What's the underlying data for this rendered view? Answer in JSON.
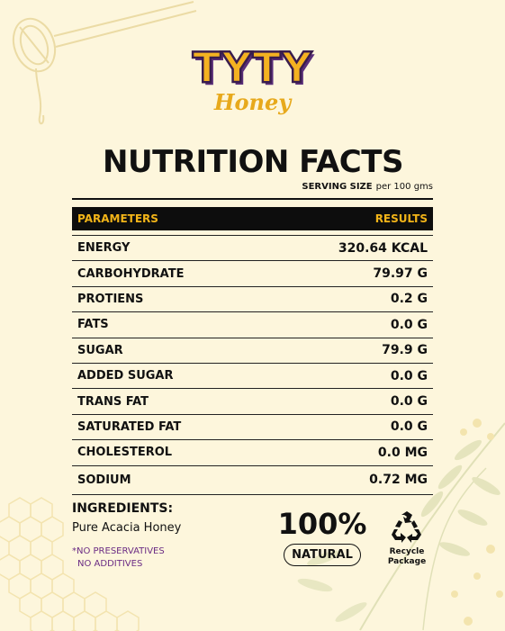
{
  "brand": {
    "name": "TYTY",
    "sub": "Honey"
  },
  "title": "NUTRITION FACTS",
  "serving": {
    "label": "SERVING SIZE",
    "value": "per 100 gms"
  },
  "table": {
    "header_left": "PARAMETERS",
    "header_right": "RESULTS",
    "rows": [
      {
        "param": "ENERGY",
        "value": "320.64 KCAL"
      },
      {
        "param": "CARBOHYDRATE",
        "value": "79.97 G"
      },
      {
        "param": "PROTIENS",
        "value": "0.2 G"
      },
      {
        "param": "FATS",
        "value": "0.0 G"
      },
      {
        "param": "SUGAR",
        "value": "79.9 G"
      },
      {
        "param": "ADDED SUGAR",
        "value": "0.0 G"
      },
      {
        "param": "TRANS FAT",
        "value": "0.0 G"
      },
      {
        "param": "SATURATED FAT",
        "value": "0.0 G"
      },
      {
        "param": "CHOLESTEROL",
        "value": "0.0 MG"
      },
      {
        "param": "SODIUM",
        "value": "0.72 MG"
      }
    ]
  },
  "ingredients": {
    "title": "INGREDIENTS:",
    "text": "Pure Acacia Honey",
    "notes": [
      "*NO PRESERVATIVES",
      "NO ADDITIVES"
    ]
  },
  "badges": {
    "natural_pct": "100%",
    "natural_label": "NATURAL",
    "recycle_line1": "Recycle",
    "recycle_line2": "Package"
  },
  "colors": {
    "background": "#fdf6dc",
    "accent_yellow": "#f2b418",
    "header_bg": "#0d0d0d",
    "notes_purple": "#6b2c84"
  },
  "icons": [
    "honey-dipper-icon",
    "honeycomb-pattern",
    "acacia-leaves",
    "recycle-icon"
  ]
}
